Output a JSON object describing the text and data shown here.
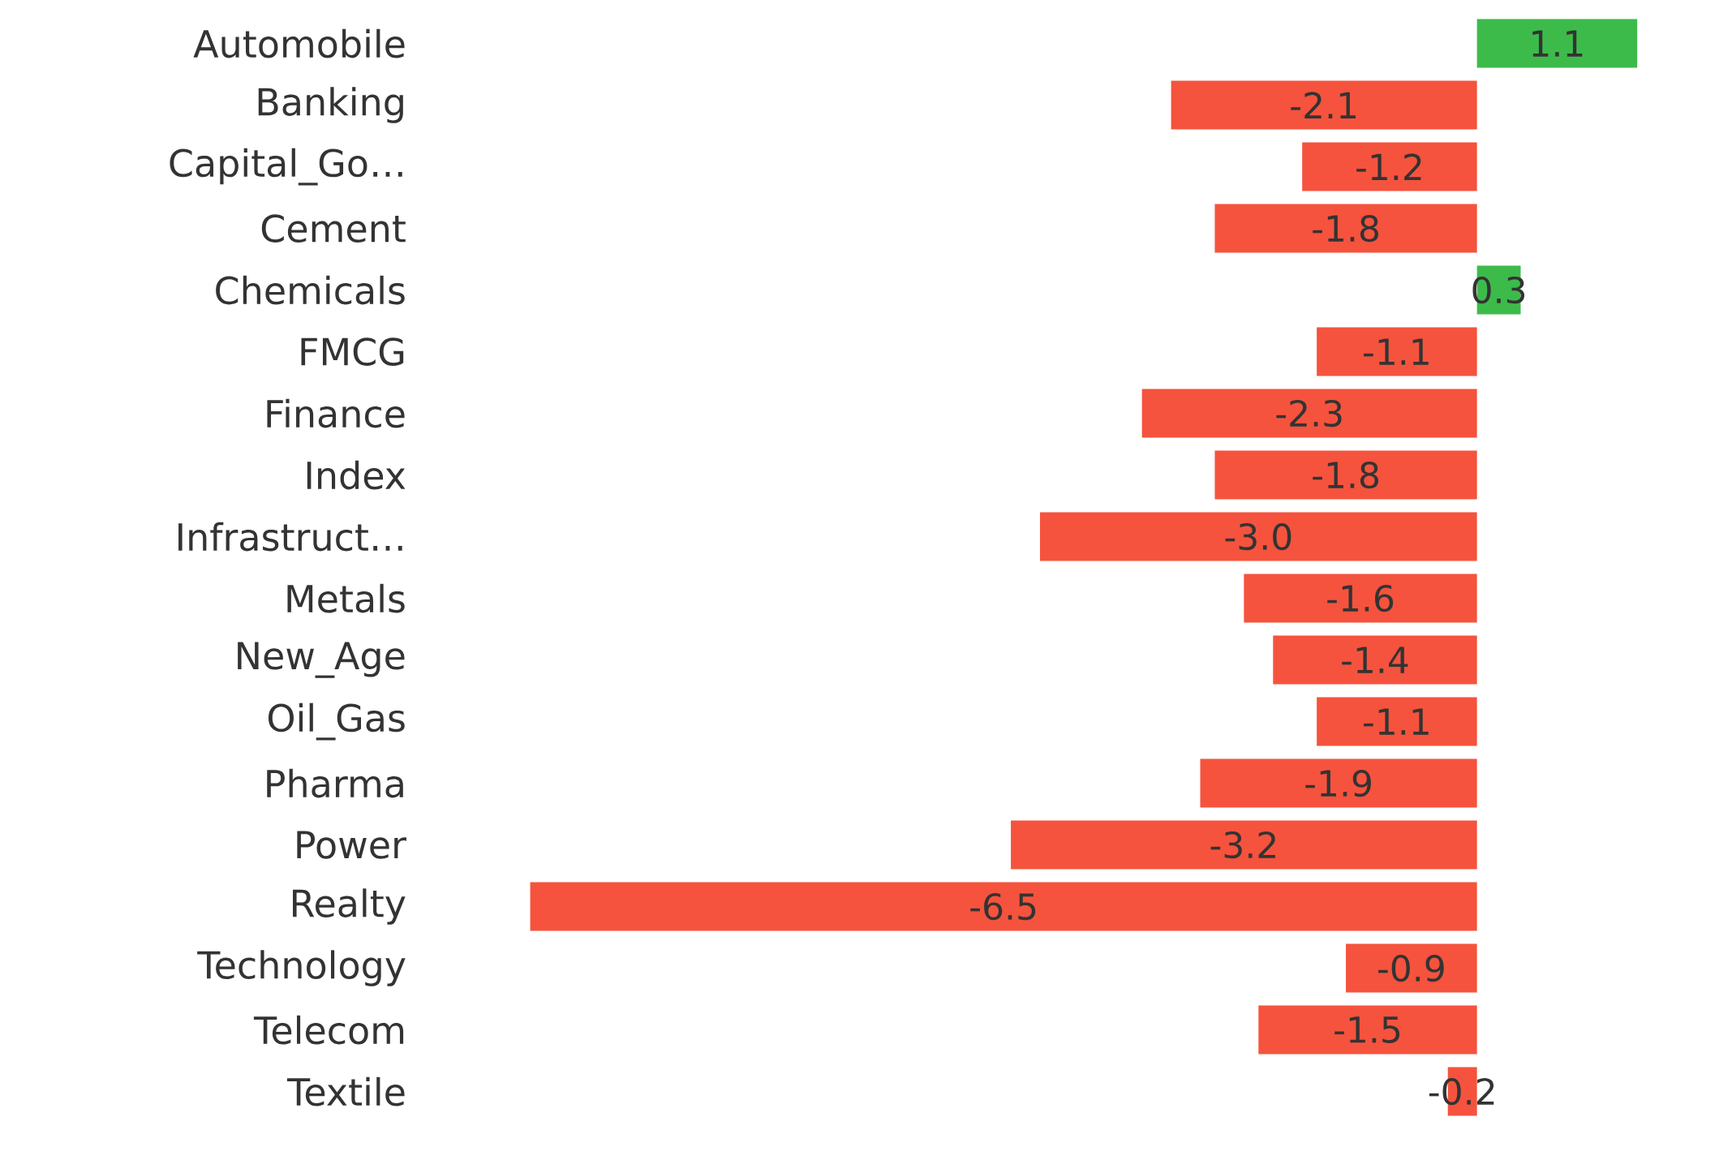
{
  "chart_data": {
    "type": "bar",
    "orientation": "horizontal",
    "value_labels": [
      "1.1",
      "-2.1",
      "-1.2",
      "-1.8",
      "0.3",
      "-1.1",
      "-2.3",
      "-1.8",
      "-3.0",
      "-1.6",
      "-1.4",
      "-1.1",
      "-1.9",
      "-3.2",
      "-6.5",
      "-0.9",
      "-1.5",
      "-0.2"
    ],
    "categories": [
      "Automobile",
      "Banking",
      "Capital_Go…",
      "Cement",
      "Chemicals",
      "FMCG",
      "Finance",
      "Index",
      "Infrastruct…",
      "Metals",
      "New_Age",
      "Oil_Gas",
      "Pharma",
      "Power",
      "Realty",
      "Technology",
      "Telecom",
      "Textile"
    ],
    "values": [
      1.1,
      -2.1,
      -1.2,
      -1.8,
      0.3,
      -1.1,
      -2.3,
      -1.8,
      -3.0,
      -1.6,
      -1.4,
      -1.1,
      -1.9,
      -3.2,
      -6.5,
      -0.9,
      -1.5,
      -0.2
    ],
    "colors": [
      "#3dbb4a",
      "#f5533d",
      "#f5533d",
      "#f5533d",
      "#3dbb4a",
      "#f5533d",
      "#f5533d",
      "#f5533d",
      "#f5533d",
      "#f5533d",
      "#f5533d",
      "#f5533d",
      "#f5533d",
      "#f5533d",
      "#f5533d",
      "#f5533d",
      "#f5533d",
      "#f5533d"
    ]
  }
}
